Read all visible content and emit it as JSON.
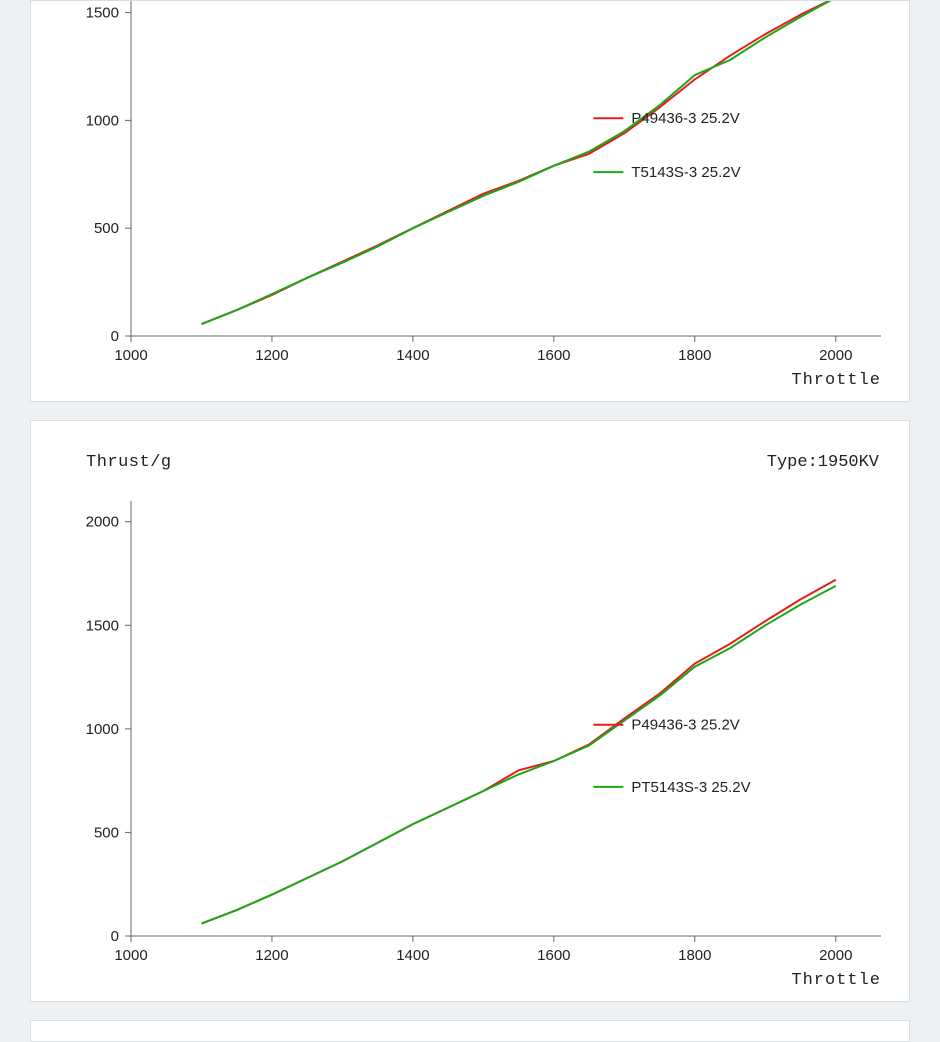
{
  "page": {
    "background_color": "#eef1f4",
    "panel_background": "#ffffff",
    "panel_border": "#d8dde2"
  },
  "chart_top": {
    "type": "line",
    "y_label": "",
    "x_label": "Throttle",
    "xlim": [
      1000,
      2050
    ],
    "ylim": [
      0,
      1600
    ],
    "xtick_step": 200,
    "ytick_step": 500,
    "xticks": [
      1000,
      1200,
      1400,
      1600,
      1800,
      2000
    ],
    "yticks": [
      0,
      500,
      1000,
      1500
    ],
    "axis_color": "#666666",
    "tick_fontsize": 15,
    "label_fontsize": 17,
    "line_width": 2,
    "series": [
      {
        "name": "P49436-3 25.2V",
        "color": "#e81c1c",
        "points": [
          [
            1100,
            55
          ],
          [
            1150,
            120
          ],
          [
            1200,
            190
          ],
          [
            1250,
            270
          ],
          [
            1300,
            345
          ],
          [
            1350,
            420
          ],
          [
            1400,
            500
          ],
          [
            1450,
            580
          ],
          [
            1500,
            660
          ],
          [
            1550,
            720
          ],
          [
            1600,
            790
          ],
          [
            1650,
            845
          ],
          [
            1700,
            940
          ],
          [
            1750,
            1060
          ],
          [
            1800,
            1190
          ],
          [
            1850,
            1300
          ],
          [
            1900,
            1400
          ],
          [
            1950,
            1490
          ],
          [
            2000,
            1570
          ]
        ]
      },
      {
        "name": "T5143S-3 25.2V",
        "color": "#1aa81a",
        "points": [
          [
            1100,
            55
          ],
          [
            1150,
            120
          ],
          [
            1200,
            195
          ],
          [
            1250,
            270
          ],
          [
            1300,
            340
          ],
          [
            1350,
            415
          ],
          [
            1400,
            500
          ],
          [
            1450,
            575
          ],
          [
            1500,
            650
          ],
          [
            1550,
            715
          ],
          [
            1600,
            790
          ],
          [
            1650,
            855
          ],
          [
            1700,
            950
          ],
          [
            1750,
            1070
          ],
          [
            1800,
            1210
          ],
          [
            1850,
            1280
          ],
          [
            1900,
            1385
          ],
          [
            1950,
            1480
          ],
          [
            2000,
            1570
          ]
        ]
      }
    ],
    "legend": {
      "x_data": 1710,
      "y_data_items": [
        1010,
        760
      ],
      "swatch_len": 30
    }
  },
  "chart_bottom": {
    "type": "line",
    "y_label": "Thrust/g",
    "x_label": "Throttle",
    "type_label": "Type:1950KV",
    "xlim": [
      1000,
      2050
    ],
    "ylim": [
      0,
      2100
    ],
    "xtick_step": 200,
    "ytick_step": 500,
    "xticks": [
      1000,
      1200,
      1400,
      1600,
      1800,
      2000
    ],
    "yticks": [
      0,
      500,
      1000,
      1500,
      2000
    ],
    "axis_color": "#666666",
    "tick_fontsize": 15,
    "label_fontsize": 17,
    "line_width": 2,
    "series": [
      {
        "name": "P49436-3 25.2V",
        "color": "#e81c1c",
        "points": [
          [
            1100,
            60
          ],
          [
            1150,
            125
          ],
          [
            1200,
            200
          ],
          [
            1250,
            280
          ],
          [
            1300,
            360
          ],
          [
            1350,
            450
          ],
          [
            1400,
            540
          ],
          [
            1450,
            620
          ],
          [
            1500,
            700
          ],
          [
            1550,
            800
          ],
          [
            1600,
            845
          ],
          [
            1650,
            925
          ],
          [
            1700,
            1050
          ],
          [
            1750,
            1170
          ],
          [
            1800,
            1315
          ],
          [
            1850,
            1410
          ],
          [
            1900,
            1520
          ],
          [
            1950,
            1625
          ],
          [
            2000,
            1720
          ]
        ]
      },
      {
        "name": "PT5143S-3 25.2V",
        "color": "#1aa81a",
        "points": [
          [
            1100,
            60
          ],
          [
            1150,
            125
          ],
          [
            1200,
            200
          ],
          [
            1250,
            280
          ],
          [
            1300,
            360
          ],
          [
            1350,
            450
          ],
          [
            1400,
            540
          ],
          [
            1450,
            620
          ],
          [
            1500,
            700
          ],
          [
            1550,
            780
          ],
          [
            1600,
            845
          ],
          [
            1650,
            920
          ],
          [
            1700,
            1040
          ],
          [
            1750,
            1160
          ],
          [
            1800,
            1300
          ],
          [
            1850,
            1390
          ],
          [
            1900,
            1500
          ],
          [
            1950,
            1600
          ],
          [
            2000,
            1690
          ]
        ]
      }
    ],
    "legend": {
      "x_data": 1710,
      "y_data_items": [
        1020,
        720
      ],
      "swatch_len": 30
    }
  }
}
